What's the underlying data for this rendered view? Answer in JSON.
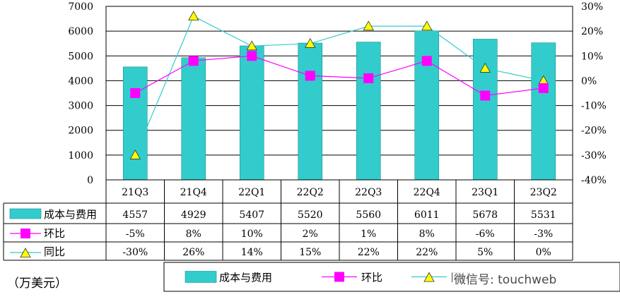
{
  "chart_data": {
    "type": "bar",
    "categories": [
      "21Q3",
      "21Q4",
      "22Q1",
      "22Q2",
      "22Q3",
      "22Q4",
      "23Q1",
      "23Q2"
    ],
    "series": [
      {
        "name": "成本与费用",
        "kind": "bar",
        "axis": "left",
        "values": [
          4557,
          4929,
          5407,
          5520,
          5560,
          6011,
          5678,
          5531
        ],
        "labels": [
          "4557",
          "4929",
          "5407",
          "5520",
          "5560",
          "6011",
          "5678",
          "5531"
        ],
        "color": "#33cccc"
      },
      {
        "name": "环比",
        "kind": "line",
        "axis": "right",
        "marker": "square",
        "values": [
          -5,
          8,
          10,
          2,
          1,
          8,
          -6,
          -3
        ],
        "labels": [
          "-5%",
          "8%",
          "10%",
          "2%",
          "1%",
          "8%",
          "-6%",
          "-3%"
        ],
        "color": "#ff00ff"
      },
      {
        "name": "同比",
        "kind": "line",
        "axis": "right",
        "marker": "triangle",
        "values": [
          -30,
          26,
          14,
          15,
          22,
          22,
          5,
          0
        ],
        "labels": [
          "-30%",
          "26%",
          "14%",
          "15%",
          "22%",
          "22%",
          "5%",
          "0%"
        ],
        "color": "#33cccc",
        "marker_color": "#ffff00"
      }
    ],
    "ylim_left": [
      0,
      7000
    ],
    "yticks_left": [
      "7000",
      "6000",
      "5000",
      "4000",
      "3000",
      "2000",
      "1000",
      "0"
    ],
    "ylim_right": [
      -40,
      30
    ],
    "yticks_right": [
      "30%",
      "20%",
      "10%",
      "0%",
      "-10%",
      "-20%",
      "-30%",
      "-40%"
    ],
    "legend_labels": [
      "成本与费用",
      "环比",
      "同比"
    ],
    "legend_position": "bottom",
    "unit_label": "（万美元）",
    "watermark": "微信号: touchweb"
  }
}
